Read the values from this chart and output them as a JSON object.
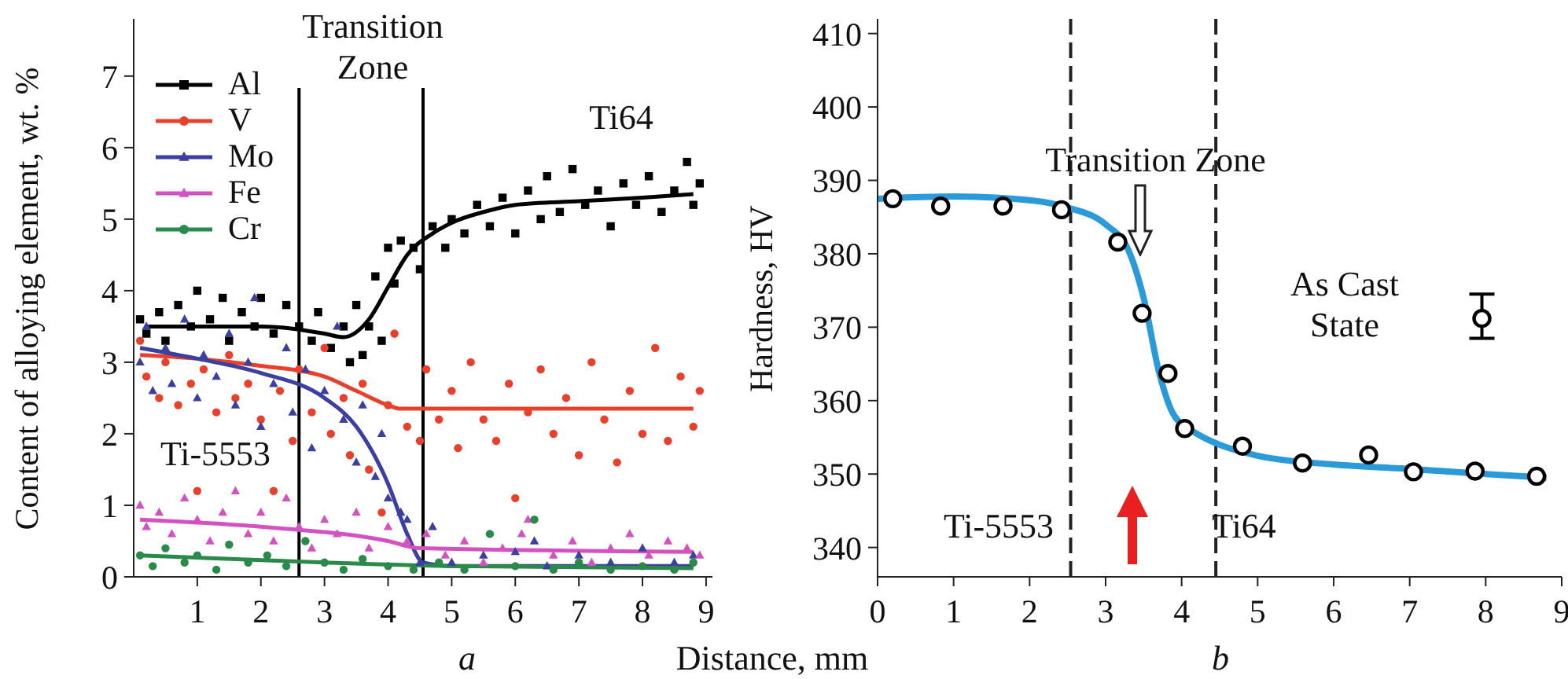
{
  "chart_data": [
    {
      "type": "scatter",
      "ylabel": "Content of alloying element, wt. %",
      "xlabel": "Distance, mm",
      "xlim": [
        0,
        9.1
      ],
      "xticks": [
        1,
        2,
        3,
        4,
        5,
        6,
        7,
        8,
        9
      ],
      "ylim": [
        0,
        7.8
      ],
      "yticks": [
        0,
        1,
        2,
        3,
        4,
        5,
        6,
        7
      ],
      "grid": false,
      "legend": "top left",
      "annotations": [
        "Transition Zone",
        "Ti64",
        "Ti-5553",
        "a"
      ],
      "ref_lines": [
        {
          "axis": "x",
          "value": 2.6,
          "color": "#000000",
          "line_style": "solid"
        },
        {
          "axis": "x",
          "value": 4.55,
          "color": "#000000",
          "line_style": "solid"
        }
      ],
      "series": [
        {
          "name": "Al",
          "color": "#000000",
          "marker": "square",
          "x": [
            0.1,
            0.2,
            0.4,
            0.5,
            0.7,
            0.9,
            1.0,
            1.2,
            1.4,
            1.5,
            1.7,
            1.9,
            2.0,
            2.2,
            2.4,
            2.6,
            2.8,
            2.9,
            3.1,
            3.3,
            3.4,
            3.5,
            3.6,
            3.7,
            3.8,
            3.9,
            4.0,
            4.1,
            4.2,
            4.4,
            4.5,
            4.7,
            4.9,
            5.0,
            5.2,
            5.4,
            5.6,
            5.8,
            6.0,
            6.2,
            6.4,
            6.5,
            6.7,
            6.9,
            7.1,
            7.3,
            7.5,
            7.7,
            7.9,
            8.1,
            8.3,
            8.5,
            8.7,
            8.8,
            8.9
          ],
          "values": [
            3.6,
            3.4,
            3.7,
            3.3,
            3.8,
            3.5,
            4.0,
            3.6,
            3.9,
            3.3,
            3.7,
            3.5,
            3.9,
            3.4,
            3.8,
            3.5,
            3.3,
            3.7,
            3.2,
            3.5,
            3.0,
            3.8,
            3.1,
            3.5,
            4.2,
            3.3,
            4.6,
            4.1,
            4.7,
            4.6,
            4.3,
            4.9,
            4.6,
            5.0,
            4.8,
            5.2,
            4.9,
            5.3,
            4.8,
            5.4,
            5.0,
            5.6,
            5.1,
            5.7,
            5.2,
            5.4,
            4.9,
            5.5,
            5.2,
            5.6,
            5.1,
            5.4,
            5.8,
            5.2,
            5.5
          ]
        },
        {
          "name": "V",
          "color": "#e8402a",
          "marker": "circle",
          "x": [
            0.1,
            0.2,
            0.4,
            0.5,
            0.7,
            0.9,
            1.0,
            1.1,
            1.3,
            1.5,
            1.6,
            1.8,
            2.0,
            2.2,
            2.3,
            2.5,
            2.6,
            2.8,
            3.0,
            3.1,
            3.3,
            3.4,
            3.6,
            3.7,
            3.9,
            4.0,
            4.1,
            4.3,
            4.5,
            4.6,
            4.8,
            5.0,
            5.1,
            5.3,
            5.5,
            5.7,
            5.9,
            6.0,
            6.2,
            6.4,
            6.6,
            6.8,
            7.0,
            7.2,
            7.4,
            7.6,
            7.8,
            8.0,
            8.2,
            8.4,
            8.6,
            8.8,
            8.9
          ],
          "values": [
            3.3,
            2.8,
            2.5,
            3.0,
            2.4,
            2.7,
            1.2,
            2.9,
            2.3,
            3.1,
            2.5,
            2.7,
            2.2,
            1.2,
            2.6,
            1.9,
            2.9,
            2.3,
            3.2,
            2.0,
            2.5,
            1.7,
            2.7,
            1.5,
            0.9,
            2.4,
            3.4,
            2.1,
            1.9,
            2.9,
            2.2,
            2.6,
            1.8,
            3.0,
            2.2,
            1.9,
            2.7,
            1.1,
            2.3,
            2.9,
            2.0,
            2.5,
            1.7,
            3.0,
            2.2,
            1.6,
            2.6,
            2.0,
            3.2,
            1.9,
            2.8,
            2.1,
            2.6
          ]
        },
        {
          "name": "Mo",
          "color": "#3a3fa0",
          "marker": "triangle",
          "x": [
            0.1,
            0.2,
            0.3,
            0.5,
            0.6,
            0.8,
            1.0,
            1.1,
            1.3,
            1.5,
            1.6,
            1.8,
            1.9,
            2.0,
            2.2,
            2.4,
            2.5,
            2.7,
            2.8,
            3.0,
            3.2,
            3.3,
            3.5,
            3.6,
            3.8,
            3.9,
            4.0,
            4.2,
            4.3,
            4.5,
            4.7,
            5.0,
            5.5,
            6.0,
            6.3,
            6.5,
            7.0,
            7.5,
            8.0,
            8.5,
            8.8
          ],
          "values": [
            3.0,
            3.5,
            2.6,
            3.2,
            2.7,
            3.6,
            2.5,
            3.1,
            2.8,
            3.4,
            2.4,
            3.0,
            3.9,
            2.1,
            2.7,
            3.2,
            2.3,
            2.9,
            1.8,
            2.6,
            3.5,
            2.2,
            1.6,
            2.4,
            1.4,
            2.0,
            1.1,
            0.9,
            0.8,
            0.2,
            0.7,
            0.2,
            0.3,
            0.35,
            0.5,
            0.15,
            0.3,
            0.2,
            0.4,
            0.2,
            0.3
          ]
        },
        {
          "name": "Fe",
          "color": "#d452c0",
          "marker": "triangle",
          "x": [
            0.1,
            0.2,
            0.4,
            0.6,
            0.8,
            1.0,
            1.2,
            1.4,
            1.6,
            1.8,
            2.0,
            2.2,
            2.4,
            2.6,
            2.8,
            3.0,
            3.2,
            3.5,
            3.7,
            4.0,
            4.3,
            4.6,
            4.9,
            5.2,
            5.5,
            5.8,
            6.1,
            6.2,
            6.6,
            6.9,
            7.2,
            7.5,
            7.8,
            8.1,
            8.4,
            8.7,
            8.9
          ],
          "values": [
            1.0,
            0.7,
            0.9,
            0.6,
            1.1,
            0.8,
            0.5,
            0.9,
            1.2,
            0.6,
            0.9,
            0.5,
            1.1,
            0.7,
            0.4,
            0.8,
            0.6,
            0.9,
            0.4,
            0.7,
            0.5,
            0.6,
            0.3,
            0.5,
            0.2,
            0.4,
            0.6,
            0.8,
            0.3,
            0.5,
            0.2,
            0.4,
            0.6,
            0.3,
            0.5,
            0.4,
            0.3
          ]
        },
        {
          "name": "Cr",
          "color": "#2a8a4a",
          "marker": "circle",
          "x": [
            0.1,
            0.3,
            0.5,
            0.8,
            1.0,
            1.3,
            1.5,
            1.8,
            2.1,
            2.4,
            2.7,
            3.0,
            3.3,
            3.6,
            4.0,
            4.4,
            4.8,
            5.2,
            5.6,
            6.0,
            6.3,
            6.6,
            7.0,
            7.5,
            8.0,
            8.5,
            8.8
          ],
          "values": [
            0.3,
            0.15,
            0.4,
            0.2,
            0.3,
            0.1,
            0.45,
            0.2,
            0.3,
            0.15,
            0.5,
            0.2,
            0.1,
            0.25,
            0.15,
            0.1,
            0.2,
            0.1,
            0.6,
            0.15,
            0.8,
            0.1,
            0.2,
            0.1,
            0.15,
            0.1,
            0.2
          ]
        },
        {
          "type": "line",
          "color": "#000000",
          "x": [
            0.2,
            1,
            2,
            3,
            3.3,
            3.7,
            4,
            4.3,
            4.7,
            5,
            5.5,
            6,
            7,
            8,
            8.8
          ],
          "values": [
            3.5,
            3.5,
            3.5,
            3.4,
            3.35,
            3.6,
            4.05,
            4.5,
            4.8,
            4.95,
            5.1,
            5.2,
            5.25,
            5.3,
            5.35
          ]
        },
        {
          "type": "line",
          "color": "#e8402a",
          "x": [
            0.1,
            1,
            2,
            3,
            3.5,
            4,
            4.2,
            8.8
          ],
          "values": [
            3.1,
            3.05,
            2.95,
            2.8,
            2.6,
            2.4,
            2.35,
            2.35
          ]
        },
        {
          "type": "line",
          "color": "#3a3fa0",
          "x": [
            0.1,
            1,
            2,
            3,
            3.5,
            4,
            4.3,
            4.55,
            5,
            8.8
          ],
          "values": [
            3.2,
            3.05,
            2.85,
            2.5,
            2.1,
            1.3,
            0.6,
            0.2,
            0.15,
            0.15
          ]
        },
        {
          "type": "line",
          "color": "#d452c0",
          "x": [
            0.1,
            2,
            4,
            4.5,
            8.8
          ],
          "values": [
            0.8,
            0.7,
            0.5,
            0.4,
            0.35
          ]
        },
        {
          "type": "line",
          "color": "#2a8a4a",
          "x": [
            0.1,
            3,
            5,
            8.8
          ],
          "values": [
            0.3,
            0.2,
            0.15,
            0.12
          ]
        }
      ]
    },
    {
      "type": "scatter",
      "ylabel": "Hardness, HV",
      "xlim": [
        0,
        9
      ],
      "xticks": [
        0,
        1,
        2,
        3,
        4,
        5,
        6,
        7,
        8,
        9
      ],
      "ylim": [
        336,
        412
      ],
      "yticks": [
        340,
        350,
        360,
        370,
        380,
        390,
        400,
        410
      ],
      "grid": false,
      "legend": false,
      "annotations": [
        {
          "text": "Transition Zone",
          "x": 3.45,
          "y": 380
        },
        "As Cast State",
        "Ti-5553",
        "Ti64",
        "b"
      ],
      "ref_lines": [
        {
          "axis": "x",
          "value": 2.54,
          "color": "#222222",
          "line_style": "dashed"
        },
        {
          "axis": "x",
          "value": 4.45,
          "color": "#222222",
          "line_style": "dashed"
        }
      ],
      "series": [
        {
          "type": "line",
          "color": "#2a9ad8",
          "x": [
            0,
            1,
            2,
            2.5,
            3,
            3.3,
            3.5,
            3.7,
            3.9,
            4.2,
            4.5,
            5,
            6,
            7,
            8,
            8.8
          ],
          "values": [
            387.5,
            387.8,
            387.3,
            386.3,
            384,
            380.5,
            374,
            364,
            358,
            355.5,
            354,
            352.5,
            351.3,
            350.7,
            350,
            349.5
          ]
        },
        {
          "color": "#000000",
          "marker": "circle",
          "x": [
            0.2,
            0.83,
            1.65,
            2.42,
            3.16,
            3.48,
            3.82,
            4.04,
            4.8,
            5.59,
            6.46,
            7.05,
            7.86,
            8.67
          ],
          "values": [
            387.5,
            386.5,
            386.5,
            386,
            381.6,
            371.9,
            363.7,
            356.2,
            353.8,
            351.5,
            352.6,
            350.3,
            350.4,
            349.7
          ]
        },
        {
          "color": "#000000",
          "marker": "circle",
          "x": [
            7.95
          ],
          "values": [
            371.2
          ],
          "errors": [
            [
              368.5,
              374.5
            ]
          ]
        }
      ]
    }
  ]
}
